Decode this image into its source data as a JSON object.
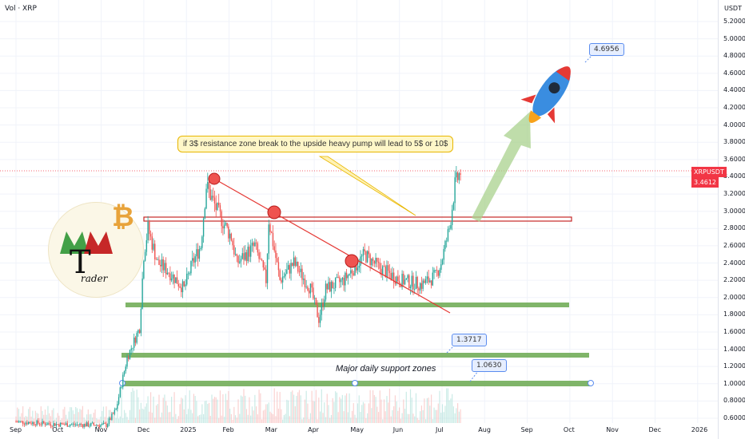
{
  "header": {
    "title": "Vol · XRP",
    "unit": "USDT"
  },
  "price_tag": {
    "symbol": "XRPUSDT",
    "value": "3.4612"
  },
  "annotations": {
    "callout": "if 3$ resistance zone break to the upside heavy pump will lead to 5$ or 10$",
    "target": "4.6956",
    "level1": "1.3717",
    "level2": "1.0630",
    "support_text": "Major daily support zones"
  },
  "logo": {
    "letters": "MB",
    "big_letter": "T",
    "text": "rader"
  },
  "colors": {
    "up": "#26a69a",
    "down": "#ef5350",
    "support": "#6aa84f",
    "resistance": "#c62828",
    "trendline": "#e53935",
    "arrow": "#a9d18e"
  },
  "chart_data": {
    "type": "candlestick",
    "title": "Vol · XRP",
    "ylabel": "USDT",
    "ylim": [
      0.5,
      5.4
    ],
    "y_ticks": [
      "5.2000",
      "5.0000",
      "4.8000",
      "4.6000",
      "4.4000",
      "4.2000",
      "4.0000",
      "3.8000",
      "3.6000",
      "3.4000",
      "3.2000",
      "3.0000",
      "2.8000",
      "2.6000",
      "2.4000",
      "2.2000",
      "2.0000",
      "1.8000",
      "1.6000",
      "1.4000",
      "1.2000",
      "1.0000",
      "0.8000",
      "0.6000"
    ],
    "x_ticks": [
      "Sep",
      "Oct",
      "Nov",
      "Dec",
      "2025",
      "Feb",
      "Mar",
      "Apr",
      "May",
      "Jun",
      "Jul",
      "Aug",
      "Sep",
      "Oct",
      "Nov",
      "Dec",
      "2026"
    ],
    "last_price": 3.4612,
    "levels": {
      "resistance": 2.9,
      "support_zones": [
        1.92,
        1.32,
        1.03
      ]
    },
    "price_path": [
      [
        "2024-09-01",
        0.56
      ],
      [
        "2024-10-01",
        0.53
      ],
      [
        "2024-11-05",
        0.52
      ],
      [
        "2024-11-12",
        0.7
      ],
      [
        "2024-11-20",
        1.3
      ],
      [
        "2024-11-29",
        1.65
      ],
      [
        "2024-12-02",
        2.5
      ],
      [
        "2024-12-05",
        2.8
      ],
      [
        "2024-12-12",
        2.4
      ],
      [
        "2024-12-20",
        2.3
      ],
      [
        "2024-12-31",
        2.1
      ],
      [
        "2025-01-06",
        2.4
      ],
      [
        "2025-01-12",
        2.6
      ],
      [
        "2025-01-16",
        3.3
      ],
      [
        "2025-01-24",
        3.0
      ],
      [
        "2025-02-03",
        2.7
      ],
      [
        "2025-02-07",
        2.4
      ],
      [
        "2025-02-20",
        2.6
      ],
      [
        "2025-02-28",
        2.2
      ],
      [
        "2025-03-02",
        2.9
      ],
      [
        "2025-03-10",
        2.2
      ],
      [
        "2025-03-20",
        2.4
      ],
      [
        "2025-04-01",
        2.1
      ],
      [
        "2025-04-07",
        1.75
      ],
      [
        "2025-04-12",
        2.1
      ],
      [
        "2025-04-25",
        2.2
      ],
      [
        "2025-05-10",
        2.5
      ],
      [
        "2025-05-20",
        2.35
      ],
      [
        "2025-06-05",
        2.2
      ],
      [
        "2025-06-20",
        2.15
      ],
      [
        "2025-06-30",
        2.25
      ],
      [
        "2025-07-04",
        2.4
      ],
      [
        "2025-07-10",
        2.8
      ],
      [
        "2025-07-14",
        3.3
      ],
      [
        "2025-07-18",
        3.4612
      ]
    ]
  }
}
